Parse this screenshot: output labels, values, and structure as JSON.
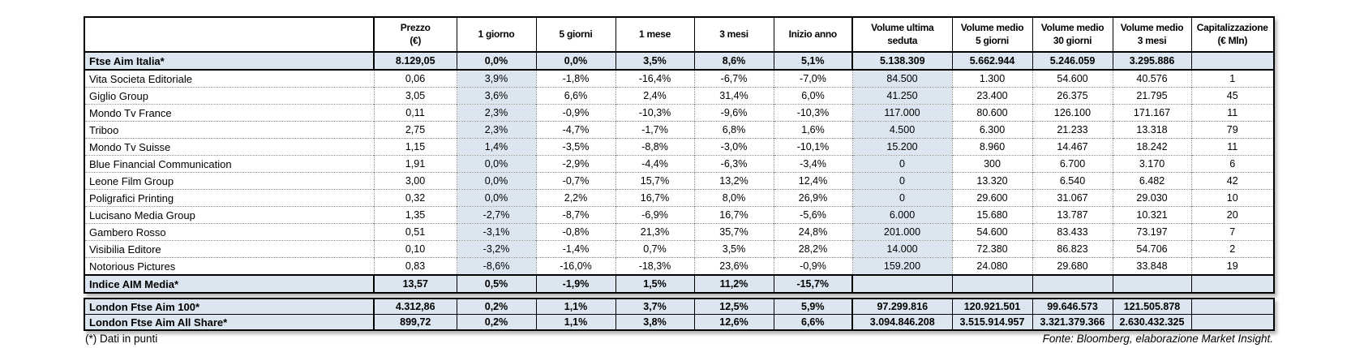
{
  "main_table": {
    "columns": [
      {
        "key": "name",
        "label": ""
      },
      {
        "key": "prezzo",
        "label": "Prezzo\n(€)"
      },
      {
        "key": "g1",
        "label": "1 giorno"
      },
      {
        "key": "g5",
        "label": "5 giorni"
      },
      {
        "key": "m1",
        "label": "1 mese"
      },
      {
        "key": "m3",
        "label": "3 mesi"
      },
      {
        "key": "inizio",
        "label": "Inizio anno"
      },
      {
        "key": "vol_ultima",
        "label": "Volume ultima\nseduta"
      },
      {
        "key": "vol_medio_5g",
        "label": "Volume medio\n5 giorni"
      },
      {
        "key": "vol_medio_30g",
        "label": "Volume medio\n30 giorni"
      },
      {
        "key": "vol_medio_3m",
        "label": "Volume medio\n3 mesi"
      },
      {
        "key": "cap",
        "label": "Capitalizzazione\n(€ Mln)"
      }
    ],
    "rows": [
      {
        "type": "index",
        "cells": [
          "Ftse Aim Italia*",
          "8.129,05",
          "0,0%",
          "0,0%",
          "3,5%",
          "8,6%",
          "5,1%",
          "5.138.309",
          "5.662.944",
          "5.246.059",
          "3.295.886",
          ""
        ]
      },
      {
        "type": "data",
        "cells": [
          "Vita Societa Editoriale",
          "0,06",
          "3,9%",
          "-1,8%",
          "-16,4%",
          "-6,7%",
          "-7,0%",
          "84.500",
          "1.300",
          "54.600",
          "40.576",
          "1"
        ]
      },
      {
        "type": "data",
        "cells": [
          "Giglio Group",
          "3,05",
          "3,6%",
          "6,6%",
          "2,4%",
          "31,4%",
          "6,0%",
          "41.250",
          "23.400",
          "26.375",
          "21.795",
          "45"
        ]
      },
      {
        "type": "data",
        "cells": [
          "Mondo Tv France",
          "0,11",
          "2,3%",
          "-0,9%",
          "-10,3%",
          "-9,6%",
          "-10,3%",
          "117.000",
          "80.600",
          "126.100",
          "171.167",
          "11"
        ]
      },
      {
        "type": "data",
        "cells": [
          "Triboo",
          "2,75",
          "2,3%",
          "-4,7%",
          "-1,7%",
          "6,8%",
          "1,6%",
          "4.500",
          "6.300",
          "21.233",
          "13.318",
          "79"
        ]
      },
      {
        "type": "data",
        "cells": [
          "Mondo Tv Suisse",
          "1,15",
          "1,4%",
          "-3,5%",
          "-8,8%",
          "-3,0%",
          "-10,1%",
          "15.200",
          "8.960",
          "14.467",
          "18.242",
          "11"
        ]
      },
      {
        "type": "data",
        "cells": [
          "Blue Financial Communication",
          "1,91",
          "0,0%",
          "-2,9%",
          "-4,4%",
          "-6,3%",
          "-3,4%",
          "0",
          "300",
          "6.700",
          "3.170",
          "6"
        ]
      },
      {
        "type": "data",
        "cells": [
          "Leone Film Group",
          "3,00",
          "0,0%",
          "-0,7%",
          "15,7%",
          "13,2%",
          "12,4%",
          "0",
          "13.320",
          "6.540",
          "6.482",
          "42"
        ]
      },
      {
        "type": "data",
        "cells": [
          "Poligrafici Printing",
          "0,32",
          "0,0%",
          "2,2%",
          "16,7%",
          "8,0%",
          "26,9%",
          "0",
          "29.600",
          "31.067",
          "29.030",
          "10"
        ]
      },
      {
        "type": "data",
        "cells": [
          "Lucisano Media Group",
          "1,35",
          "-2,7%",
          "-8,7%",
          "-6,9%",
          "16,7%",
          "-5,6%",
          "6.000",
          "15.680",
          "13.787",
          "10.321",
          "20"
        ]
      },
      {
        "type": "data",
        "cells": [
          "Gambero Rosso",
          "0,51",
          "-3,1%",
          "-0,8%",
          "21,3%",
          "35,7%",
          "24,8%",
          "201.000",
          "54.600",
          "83.433",
          "73.197",
          "7"
        ]
      },
      {
        "type": "data",
        "cells": [
          "Visibilia Editore",
          "0,10",
          "-3,2%",
          "-1,4%",
          "0,7%",
          "3,5%",
          "28,2%",
          "14.000",
          "72.380",
          "86.823",
          "54.706",
          "2"
        ]
      },
      {
        "type": "data",
        "cells": [
          "Notorious Pictures",
          "0,83",
          "-8,6%",
          "-16,0%",
          "-18,3%",
          "23,6%",
          "-0,9%",
          "159.200",
          "24.080",
          "29.680",
          "33.848",
          "19"
        ]
      },
      {
        "type": "index",
        "cells": [
          "Indice AIM Media*",
          "13,57",
          "0,5%",
          "-1,9%",
          "1,5%",
          "11,2%",
          "-15,7%",
          "",
          "",
          "",
          "",
          ""
        ]
      }
    ]
  },
  "london_table": {
    "rows": [
      {
        "type": "index",
        "cells": [
          "London Ftse Aim 100*",
          "4.312,86",
          "0,2%",
          "1,1%",
          "3,7%",
          "12,5%",
          "5,9%",
          "97.299.816",
          "120.921.501",
          "99.646.573",
          "121.505.878",
          ""
        ]
      },
      {
        "type": "index",
        "cells": [
          "London Ftse Aim All Share*",
          "899,72",
          "0,2%",
          "1,1%",
          "3,8%",
          "12,6%",
          "6,6%",
          "3.094.846.208",
          "3.515.914.957",
          "3.321.379.366",
          "2.630.432.325",
          ""
        ]
      }
    ]
  },
  "footnote": "(*) Dati in punti",
  "source": "Fonte: Bloomberg, elaborazione Market Insight.",
  "colors": {
    "highlight": "#dce6f1",
    "border": "#000000",
    "grid_dotted": "#8f8f8f"
  }
}
